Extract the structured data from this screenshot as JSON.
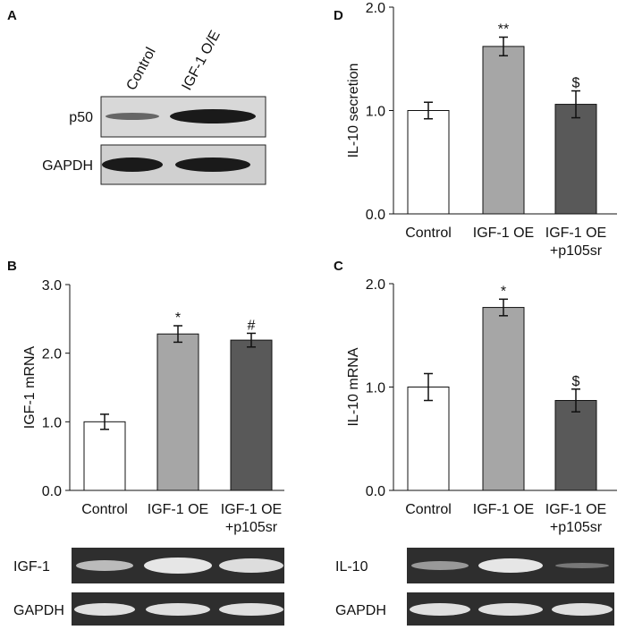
{
  "chart_data": [
    {
      "type": "bar",
      "panel_label": "B",
      "y_label": "IGF-1 mRNA",
      "categories": [
        "Control",
        "IGF-1 OE",
        "IGF-1 OE\n+p105sr"
      ],
      "values": [
        1.0,
        2.28,
        2.19
      ],
      "errors": [
        0.11,
        0.12,
        0.1
      ],
      "annotations": [
        null,
        "*",
        "#"
      ],
      "colors": [
        "#ffffff",
        "#a6a6a6",
        "#595959"
      ],
      "ylim": [
        0,
        3
      ],
      "yticks": [
        {
          "value": 0,
          "label": "0.0"
        },
        {
          "value": 1,
          "label": "1.0"
        },
        {
          "value": 2,
          "label": "2.0"
        },
        {
          "value": 3,
          "label": "3.0"
        }
      ]
    },
    {
      "type": "bar",
      "panel_label": "C",
      "y_label": "IL-10 mRNA",
      "categories": [
        "Control",
        "IGF-1 OE",
        "IGF-1 OE\n+p105sr"
      ],
      "values": [
        1.0,
        1.77,
        0.87
      ],
      "errors": [
        0.13,
        0.08,
        0.11
      ],
      "annotations": [
        null,
        "*",
        "$"
      ],
      "colors": [
        "#ffffff",
        "#a6a6a6",
        "#595959"
      ],
      "ylim": [
        0,
        2
      ],
      "yticks": [
        {
          "value": 0,
          "label": "0.0"
        },
        {
          "value": 1,
          "label": "1.0"
        },
        {
          "value": 2,
          "label": "2.0"
        }
      ]
    },
    {
      "type": "bar",
      "panel_label": "D",
      "y_label": "IL-10 secretion",
      "categories": [
        "Control",
        "IGF-1 OE",
        "IGF-1 OE\n+p105sr"
      ],
      "values": [
        1.0,
        1.62,
        1.06
      ],
      "errors": [
        0.08,
        0.09,
        0.13
      ],
      "annotations": [
        null,
        "**",
        "$"
      ],
      "colors": [
        "#ffffff",
        "#a6a6a6",
        "#595959"
      ],
      "ylim": [
        0,
        2
      ],
      "yticks": [
        {
          "value": 0,
          "label": "0.0"
        },
        {
          "value": 1,
          "label": "1.0"
        },
        {
          "value": 2,
          "label": "2.0"
        }
      ]
    }
  ],
  "blots": [
    {
      "panel_label": "A",
      "lanes": [
        "Control",
        "IGF-1 O/E"
      ],
      "rows": [
        "p50",
        "GAPDH"
      ]
    },
    {
      "rows": [
        "IGF-1",
        "GAPDH"
      ]
    },
    {
      "rows": [
        "IL-10",
        "GAPDH"
      ]
    }
  ]
}
